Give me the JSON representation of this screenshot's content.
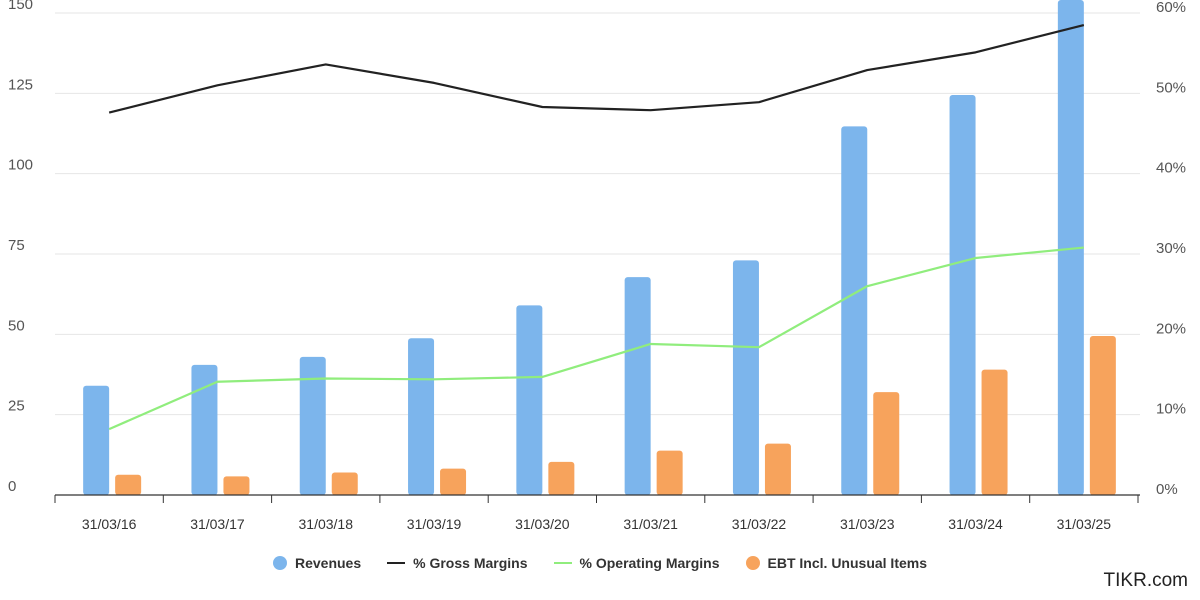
{
  "chart_data": {
    "type": "bar",
    "categories": [
      "31/03/16",
      "31/03/17",
      "31/03/18",
      "31/03/19",
      "31/03/20",
      "31/03/21",
      "31/03/22",
      "31/03/23",
      "31/03/24",
      "31/03/25"
    ],
    "y_left": {
      "ticks": [
        "0",
        "25",
        "50",
        "75",
        "100",
        "125",
        "150"
      ],
      "lim": [
        0,
        150
      ]
    },
    "y_right": {
      "ticks": [
        "0%",
        "10%",
        "20%",
        "30%",
        "40%",
        "50%",
        "60%"
      ],
      "lim": [
        0,
        60
      ]
    },
    "series": [
      {
        "name": "Revenues",
        "kind": "bar",
        "axis": "left",
        "color": "#7cb5ec",
        "values": [
          34,
          40.5,
          43,
          48.8,
          59,
          67.8,
          73,
          114.7,
          124.5,
          156
        ]
      },
      {
        "name": "EBT Incl. Unusual Items",
        "kind": "bar",
        "axis": "left",
        "color": "#f7a35c",
        "values": [
          6.3,
          5.8,
          7,
          8.2,
          10.3,
          13.8,
          16,
          32,
          39,
          49.5
        ]
      },
      {
        "name": "% Gross Margins",
        "kind": "line",
        "axis": "right",
        "color": "#222222",
        "values": [
          47.6,
          51,
          53.6,
          51.3,
          48.3,
          47.9,
          48.9,
          52.9,
          55.1,
          58.5
        ]
      },
      {
        "name": "% Operating Margins",
        "kind": "line",
        "axis": "right",
        "color": "#90ed7d",
        "values": [
          8.2,
          14.1,
          14.5,
          14.4,
          14.7,
          18.8,
          18.4,
          26,
          29.5,
          30.8
        ]
      }
    ],
    "grid": true,
    "legend_position": "bottom-center"
  },
  "legend": {
    "revenues": "Revenues",
    "gross": "% Gross Margins",
    "operating": "% Operating Margins",
    "ebt": "EBT Incl. Unusual Items"
  },
  "brand": "TIKR.com",
  "colors": {
    "revenues": "#7cb5ec",
    "ebt": "#f7a35c",
    "gross": "#222222",
    "operating": "#90ed7d",
    "grid": "#e6e6e6",
    "axis": "#333333"
  }
}
